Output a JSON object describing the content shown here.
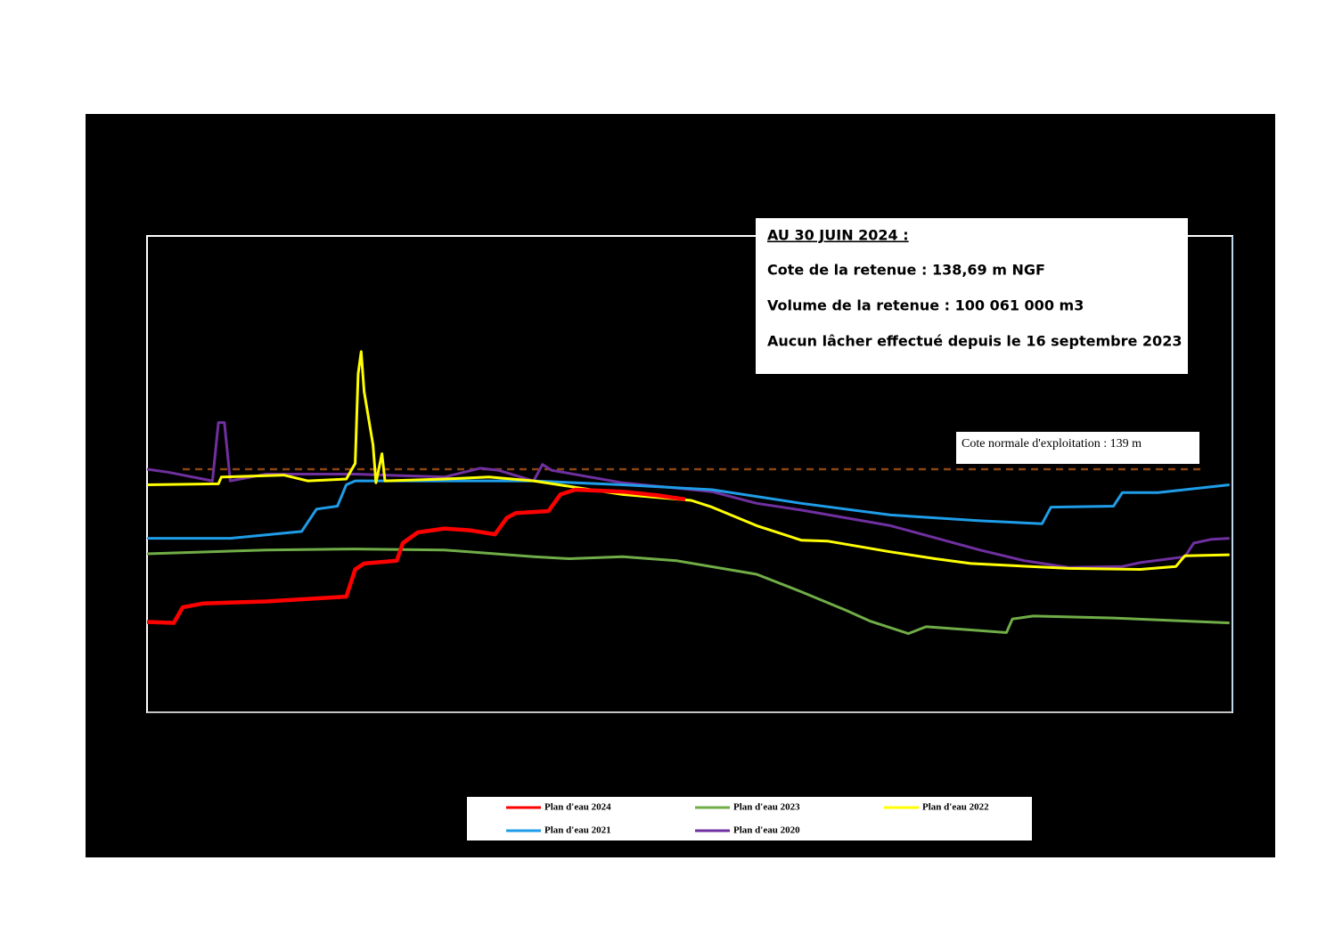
{
  "chart_data": {
    "type": "line",
    "annotations": [
      "AU 30 JUIN 2024 :",
      "Cote de la retenue : 138,69 m NGF",
      "Volume de la retenue : 100 061 000 m3",
      "Aucun lâcher effectué depuis le 16 septembre 2023"
    ],
    "reference_line": {
      "value": 139,
      "label": "Cote normale d'exploitation : 139 m",
      "color": "#8b4513"
    },
    "xlim": [
      1,
      366
    ],
    "ylim": [
      136.5,
      141.4
    ],
    "series": [
      {
        "name": "Plan d'eau 2024",
        "color": "#ff0000",
        "x": [
          1,
          10,
          13,
          20,
          41,
          68,
          71,
          74,
          85,
          87,
          92,
          101,
          110,
          118,
          122,
          125,
          136,
          140,
          145,
          161,
          173,
          182
        ],
        "values": [
          137.43,
          137.42,
          137.58,
          137.62,
          137.64,
          137.69,
          137.97,
          138.03,
          138.06,
          138.24,
          138.35,
          138.39,
          138.37,
          138.33,
          138.5,
          138.55,
          138.57,
          138.74,
          138.79,
          138.77,
          138.73,
          138.69
        ]
      },
      {
        "name": "Plan d'eau 2023",
        "color": "#70ad47",
        "x": [
          1,
          41,
          71,
          101,
          131,
          143,
          161,
          179,
          206,
          221,
          236,
          244,
          257,
          263,
          281,
          290,
          292,
          299,
          326,
          365
        ],
        "values": [
          138.13,
          138.17,
          138.18,
          138.17,
          138.1,
          138.08,
          138.1,
          138.06,
          137.92,
          137.74,
          137.55,
          137.44,
          137.31,
          137.38,
          137.34,
          137.32,
          137.46,
          137.49,
          137.47,
          137.42
        ]
      },
      {
        "name": "Plan d'eau 2022",
        "color": "#ffff00",
        "x": [
          1,
          25,
          26,
          47,
          55,
          68,
          71,
          72,
          73,
          74,
          77,
          78,
          80,
          81,
          101,
          116,
          131,
          146,
          161,
          184,
          191,
          206,
          221,
          230,
          251,
          266,
          278,
          311,
          335,
          347,
          350,
          365
        ],
        "values": [
          138.84,
          138.85,
          138.92,
          138.94,
          138.88,
          138.9,
          139.06,
          139.98,
          140.21,
          139.8,
          139.25,
          138.86,
          139.16,
          138.88,
          138.9,
          138.92,
          138.88,
          138.81,
          138.74,
          138.68,
          138.61,
          138.42,
          138.27,
          138.26,
          138.15,
          138.08,
          138.03,
          137.98,
          137.97,
          138.0,
          138.11,
          138.12
        ]
      },
      {
        "name": "Plan d'eau 2021",
        "color": "#1f9de8",
        "x": [
          1,
          29,
          53,
          58,
          65,
          68,
          71,
          101,
          131,
          161,
          191,
          221,
          251,
          281,
          302,
          305,
          326,
          329,
          341,
          365
        ],
        "values": [
          138.29,
          138.29,
          138.36,
          138.59,
          138.62,
          138.84,
          138.88,
          138.88,
          138.88,
          138.84,
          138.79,
          138.65,
          138.53,
          138.47,
          138.44,
          138.61,
          138.62,
          138.76,
          138.76,
          138.84
        ]
      },
      {
        "name": "Plan d'eau 2020",
        "color": "#7030a0",
        "x": [
          1,
          8,
          23,
          25,
          27,
          29,
          41,
          71,
          101,
          113,
          119,
          131,
          134,
          137,
          161,
          191,
          206,
          221,
          251,
          281,
          296,
          311,
          329,
          335,
          350,
          353,
          359,
          365
        ],
        "values": [
          139.0,
          138.97,
          138.88,
          139.48,
          139.48,
          138.88,
          138.95,
          138.95,
          138.92,
          139.01,
          138.99,
          138.88,
          139.05,
          138.99,
          138.86,
          138.77,
          138.65,
          138.58,
          138.42,
          138.17,
          138.06,
          137.99,
          138.0,
          138.04,
          138.1,
          138.24,
          138.28,
          138.29
        ]
      }
    ]
  }
}
